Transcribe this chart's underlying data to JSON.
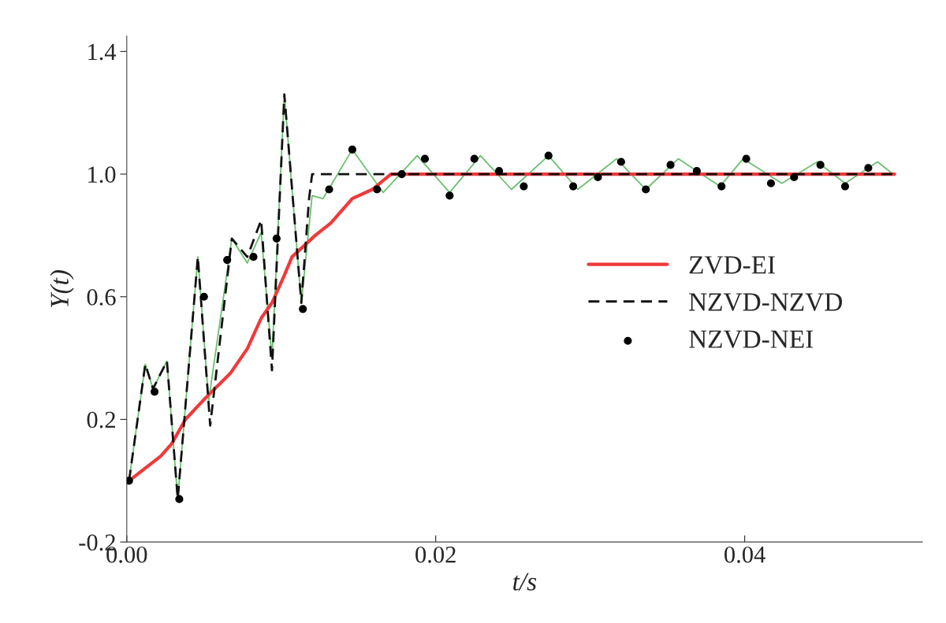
{
  "chart_data": {
    "type": "line",
    "xlabel": "t/s",
    "ylabel": "Y(t)",
    "xlim": [
      0,
      0.0515
    ],
    "xticks": [
      {
        "value": 0,
        "label": "0.00"
      },
      0.02,
      0.04
    ],
    "ylim": [
      -0.2,
      1.45
    ],
    "yticks": [
      -0.2,
      0.2,
      0.6,
      {
        "value": 1.0,
        "label": "1.0"
      },
      1.4
    ],
    "grid": false,
    "legend": "right",
    "series": [
      {
        "color": "#6cc070",
        "x": [
          0.00015,
          0.0012,
          0.0017,
          0.0026,
          0.0033,
          0.0046,
          0.0053,
          0.0068,
          0.0078,
          0.0087,
          0.0094,
          0.0102,
          0.0113,
          0.012,
          0.0127,
          0.0146,
          0.0166,
          0.0188,
          0.0209,
          0.0229,
          0.0249,
          0.0273,
          0.0292,
          0.0317,
          0.0336,
          0.0357,
          0.0384,
          0.0399,
          0.0424,
          0.0447,
          0.0465,
          0.0486,
          0.0496
        ],
        "values": [
          0.0,
          0.38,
          0.3,
          0.39,
          -0.06,
          0.73,
          0.26,
          0.79,
          0.71,
          0.81,
          0.4,
          1.26,
          0.58,
          0.93,
          0.92,
          1.08,
          0.94,
          1.06,
          0.94,
          1.06,
          0.95,
          1.06,
          0.95,
          1.05,
          0.95,
          1.05,
          0.96,
          1.05,
          0.97,
          1.04,
          0.97,
          1.04,
          1.0
        ],
        "line_style": "solid"
      },
      {
        "name": "ZVD-EI",
        "color": "#f0393a",
        "x": [
          0.00015,
          0.0022,
          0.0029,
          0.0038,
          0.0051,
          0.0067,
          0.0078,
          0.0087,
          0.0094,
          0.0102,
          0.0107,
          0.0122,
          0.0132,
          0.0146,
          0.0159,
          0.0171,
          0.0497
        ],
        "values": [
          0.0,
          0.08,
          0.12,
          0.2,
          0.27,
          0.35,
          0.43,
          0.53,
          0.58,
          0.67,
          0.73,
          0.8,
          0.84,
          0.92,
          0.95,
          1.0,
          1.0
        ],
        "line_style": "solid"
      },
      {
        "name": "NZVD-NZVD",
        "color": "#111111",
        "x": [
          0.00015,
          0.0012,
          0.0017,
          0.0026,
          0.0033,
          0.0046,
          0.0054,
          0.0068,
          0.0078,
          0.0087,
          0.0094,
          0.0102,
          0.0113,
          0.0118,
          0.012,
          0.0497
        ],
        "values": [
          0.0,
          0.38,
          0.3,
          0.39,
          -0.06,
          0.73,
          0.18,
          0.79,
          0.73,
          0.85,
          0.36,
          1.26,
          0.58,
          0.92,
          1.0,
          1.0
        ],
        "line_style": "dashed"
      },
      {
        "type": "scatter",
        "name": "NZVD-NEI",
        "color": "#000000",
        "marker": "circle",
        "x": [
          0.00015,
          0.0018,
          0.0034,
          0.005,
          0.0065,
          0.0082,
          0.0097,
          0.0114,
          0.0131,
          0.0146,
          0.0162,
          0.0178,
          0.0193,
          0.0209,
          0.0225,
          0.0241,
          0.0257,
          0.0273,
          0.0289,
          0.0305,
          0.032,
          0.0336,
          0.0352,
          0.0369,
          0.0385,
          0.0401,
          0.0417,
          0.0432,
          0.0449,
          0.0465,
          0.048
        ],
        "values": [
          0.0,
          0.29,
          -0.06,
          0.6,
          0.72,
          0.73,
          0.79,
          0.56,
          0.95,
          1.08,
          0.95,
          1.0,
          1.05,
          0.93,
          1.05,
          1.01,
          0.96,
          1.06,
          0.96,
          0.99,
          1.04,
          0.95,
          1.03,
          1.01,
          0.96,
          1.05,
          0.97,
          0.99,
          1.03,
          0.96,
          1.02
        ]
      }
    ]
  }
}
